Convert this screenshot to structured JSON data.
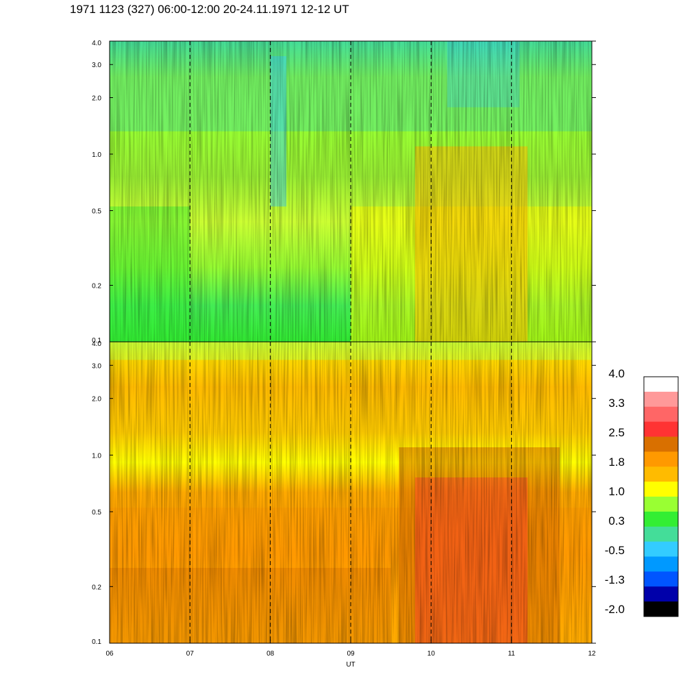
{
  "chart_data": {
    "type": "heatmap",
    "title": "1971 1123 (327) 06:00-12:00 20-24.11.1971  12-12 UT",
    "xlabel": "UT",
    "x_ticks": [
      "06",
      "07",
      "08",
      "09",
      "10",
      "11",
      "12"
    ],
    "x_range": [
      6,
      12
    ],
    "panels": [
      {
        "name": "upper",
        "yscale": "log",
        "ylim": [
          0.1,
          4.0
        ],
        "y_ticks": [
          "4.0",
          "3.0",
          "2.0",
          "1.0",
          "0.5",
          "0.2",
          "0.1"
        ],
        "y_values": [
          4.0,
          3.0,
          2.0,
          1.0,
          0.5,
          0.2,
          0.1
        ]
      },
      {
        "name": "lower",
        "yscale": "log",
        "ylim": [
          0.1,
          4.0
        ],
        "y_ticks": [
          "4.0",
          "3.0",
          "2.0",
          "1.0",
          "0.5",
          "0.2",
          "0.1"
        ],
        "y_values": [
          4.0,
          3.0,
          2.0,
          1.0,
          0.5,
          0.2,
          0.1
        ]
      }
    ],
    "hour_gridlines": [
      7,
      8,
      9,
      10,
      11
    ],
    "colorbar": {
      "labels": [
        "4.0",
        "3.3",
        "2.5",
        "1.8",
        "1.0",
        "0.3",
        "-0.5",
        "-1.3",
        "-2.0"
      ],
      "colors": [
        "#ffffff",
        "#ff9999",
        "#ff6666",
        "#ff3333",
        "#d97000",
        "#ff9900",
        "#ffbb00",
        "#ffff00",
        "#99ff33",
        "#33ee33",
        "#44dd99",
        "#33ccff",
        "#0099ff",
        "#0055ff",
        "#0000aa",
        "#000000"
      ]
    }
  }
}
